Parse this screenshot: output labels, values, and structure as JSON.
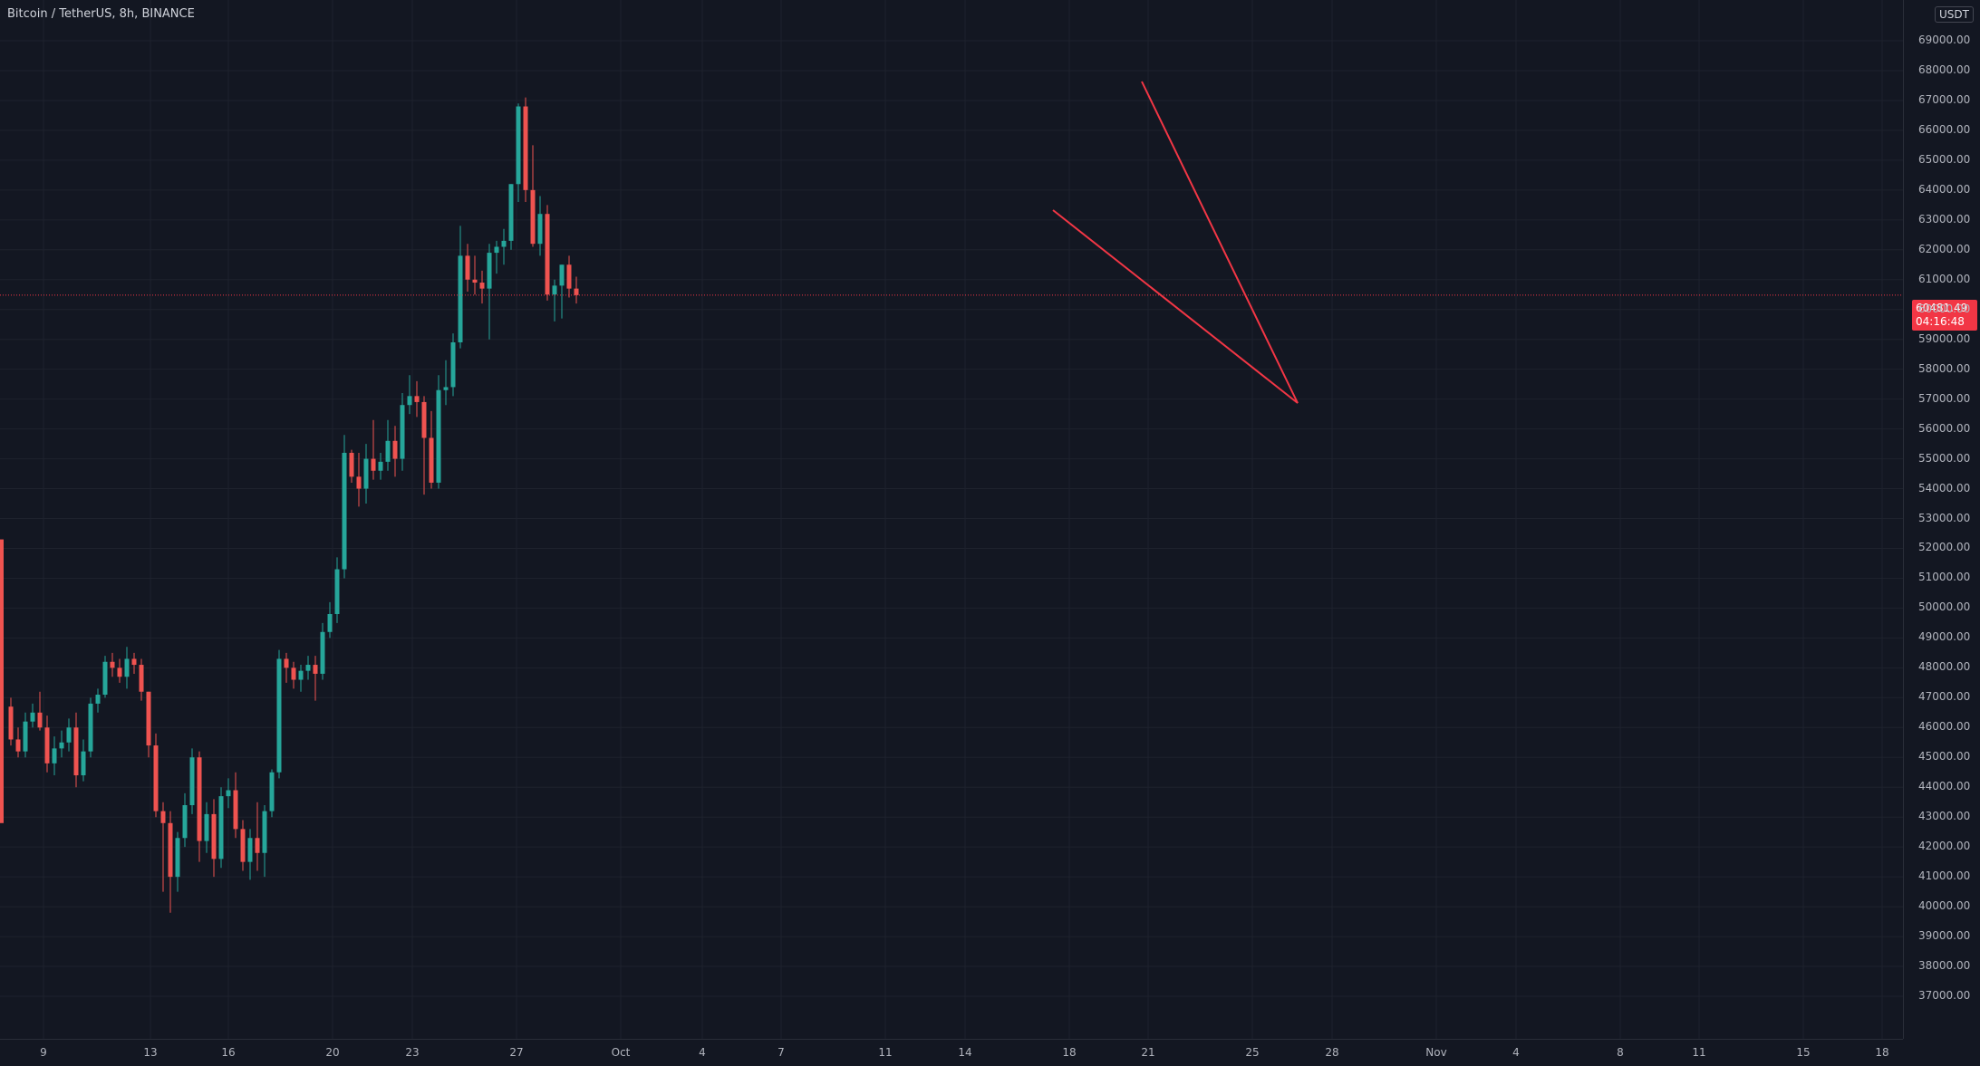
{
  "header": {
    "title": "Bitcoin / TetherUS, 8h, BINANCE"
  },
  "price_axis": {
    "currency": "USDT",
    "labels": [
      "69000.00",
      "68000.00",
      "67000.00",
      "66000.00",
      "65000.00",
      "64000.00",
      "63000.00",
      "62000.00",
      "61000.00",
      "60000.00",
      "59000.00",
      "58000.00",
      "57000.00",
      "56000.00",
      "55000.00",
      "54000.00",
      "53000.00",
      "52000.00",
      "51000.00",
      "50000.00",
      "49000.00",
      "48000.00",
      "47000.00",
      "46000.00",
      "45000.00",
      "44000.00",
      "43000.00",
      "42000.00",
      "41000.00",
      "40000.00",
      "39000.00",
      "38000.00",
      "37000.00"
    ],
    "current_price": "60481.49",
    "countdown": "04:16:48"
  },
  "time_axis": {
    "labels": [
      "9",
      "13",
      "16",
      "20",
      "23",
      "27",
      "Oct",
      "4",
      "7",
      "11",
      "14",
      "18",
      "21",
      "25",
      "28",
      "Nov",
      "4",
      "8",
      "11",
      "15",
      "18"
    ]
  },
  "colors": {
    "background": "#131722",
    "up": "#26a69a",
    "down": "#ef5350",
    "drawing": "#f23645",
    "grid": "#1e222d"
  },
  "chart_data": {
    "type": "candlestick",
    "symbol": "Bitcoin / TetherUS",
    "interval": "8h",
    "exchange": "BINANCE",
    "ylim": [
      37000,
      69400
    ],
    "current_price": 60481.49,
    "ohlc_approx": [
      [
        46700,
        47000,
        45400,
        45600
      ],
      [
        45600,
        46000,
        45000,
        45200
      ],
      [
        45200,
        46500,
        45000,
        46200
      ],
      [
        46200,
        46800,
        46000,
        46500
      ],
      [
        46500,
        47200,
        45900,
        46000
      ],
      [
        46000,
        46400,
        44500,
        44800
      ],
      [
        44800,
        45700,
        44400,
        45300
      ],
      [
        45300,
        45900,
        45000,
        45500
      ],
      [
        45500,
        46300,
        45200,
        46000
      ],
      [
        46000,
        46500,
        44000,
        44400
      ],
      [
        44400,
        45600,
        44200,
        45200
      ],
      [
        45200,
        47000,
        45000,
        46800
      ],
      [
        46800,
        47300,
        46500,
        47100
      ],
      [
        47100,
        48400,
        47000,
        48200
      ],
      [
        48200,
        48500,
        47700,
        48000
      ],
      [
        48000,
        48300,
        47500,
        47700
      ],
      [
        47700,
        48700,
        47300,
        48300
      ],
      [
        48300,
        48500,
        47800,
        48100
      ],
      [
        48100,
        48300,
        46900,
        47200
      ],
      [
        47200,
        46900,
        45000,
        45400
      ],
      [
        45400,
        45800,
        43000,
        43200
      ],
      [
        43200,
        43500,
        40500,
        42800
      ],
      [
        42800,
        43200,
        39800,
        41000
      ],
      [
        41000,
        42500,
        40500,
        42300
      ],
      [
        42300,
        43800,
        42000,
        43400
      ],
      [
        43400,
        45300,
        43100,
        45000
      ],
      [
        45000,
        45200,
        41500,
        42200
      ],
      [
        42200,
        43500,
        41800,
        43100
      ],
      [
        43100,
        43600,
        41000,
        41600
      ],
      [
        41600,
        44000,
        41300,
        43700
      ],
      [
        43700,
        44300,
        43300,
        43900
      ],
      [
        43900,
        44500,
        42300,
        42600
      ],
      [
        42600,
        42900,
        41200,
        41500
      ],
      [
        41500,
        42600,
        40900,
        42300
      ],
      [
        42300,
        43500,
        41200,
        41800
      ],
      [
        41800,
        43400,
        41000,
        43200
      ],
      [
        43200,
        44600,
        43000,
        44500
      ],
      [
        44500,
        48600,
        44300,
        48300
      ],
      [
        48300,
        48500,
        47500,
        48000
      ],
      [
        48000,
        48200,
        47300,
        47600
      ],
      [
        47600,
        48100,
        47200,
        47900
      ],
      [
        47900,
        48400,
        47600,
        48100
      ],
      [
        48100,
        48400,
        46900,
        47800
      ],
      [
        47800,
        49500,
        47600,
        49200
      ],
      [
        49200,
        50200,
        49000,
        49800
      ],
      [
        49800,
        51700,
        49500,
        51300
      ],
      [
        51300,
        55800,
        51000,
        55200
      ],
      [
        55200,
        55300,
        54200,
        54400
      ],
      [
        54400,
        55200,
        53400,
        54000
      ],
      [
        54000,
        55500,
        53500,
        55000
      ],
      [
        55000,
        56300,
        54300,
        54600
      ],
      [
        54600,
        55200,
        54300,
        54900
      ],
      [
        54900,
        56300,
        54600,
        55600
      ],
      [
        55600,
        56100,
        54400,
        55000
      ],
      [
        55000,
        57200,
        54600,
        56800
      ],
      [
        56800,
        57800,
        56500,
        57100
      ],
      [
        57100,
        57600,
        56400,
        56900
      ],
      [
        56900,
        57100,
        53800,
        55700
      ],
      [
        55700,
        56600,
        54000,
        54200
      ],
      [
        54200,
        57800,
        54000,
        57300
      ],
      [
        57300,
        58300,
        56800,
        57400
      ],
      [
        57400,
        59200,
        57100,
        58900
      ],
      [
        58900,
        62800,
        58700,
        61800
      ],
      [
        61800,
        62200,
        60600,
        61000
      ],
      [
        61000,
        61800,
        60500,
        60900
      ],
      [
        60900,
        61300,
        60200,
        60700
      ],
      [
        60700,
        62200,
        59000,
        61900
      ],
      [
        61900,
        62300,
        61200,
        62100
      ],
      [
        62100,
        62700,
        61500,
        62300
      ],
      [
        62300,
        63800,
        62000,
        64200
      ],
      [
        64200,
        66900,
        63600,
        66800
      ],
      [
        66800,
        67100,
        63600,
        64000
      ],
      [
        64000,
        65500,
        62100,
        62200
      ],
      [
        62200,
        63800,
        61800,
        63200
      ],
      [
        63200,
        63500,
        60300,
        60500
      ],
      [
        60500,
        61000,
        59600,
        60800
      ],
      [
        60800,
        61500,
        59700,
        61500
      ],
      [
        61500,
        61800,
        60400,
        60700
      ],
      [
        60700,
        61100,
        60200,
        60481.49
      ]
    ]
  }
}
